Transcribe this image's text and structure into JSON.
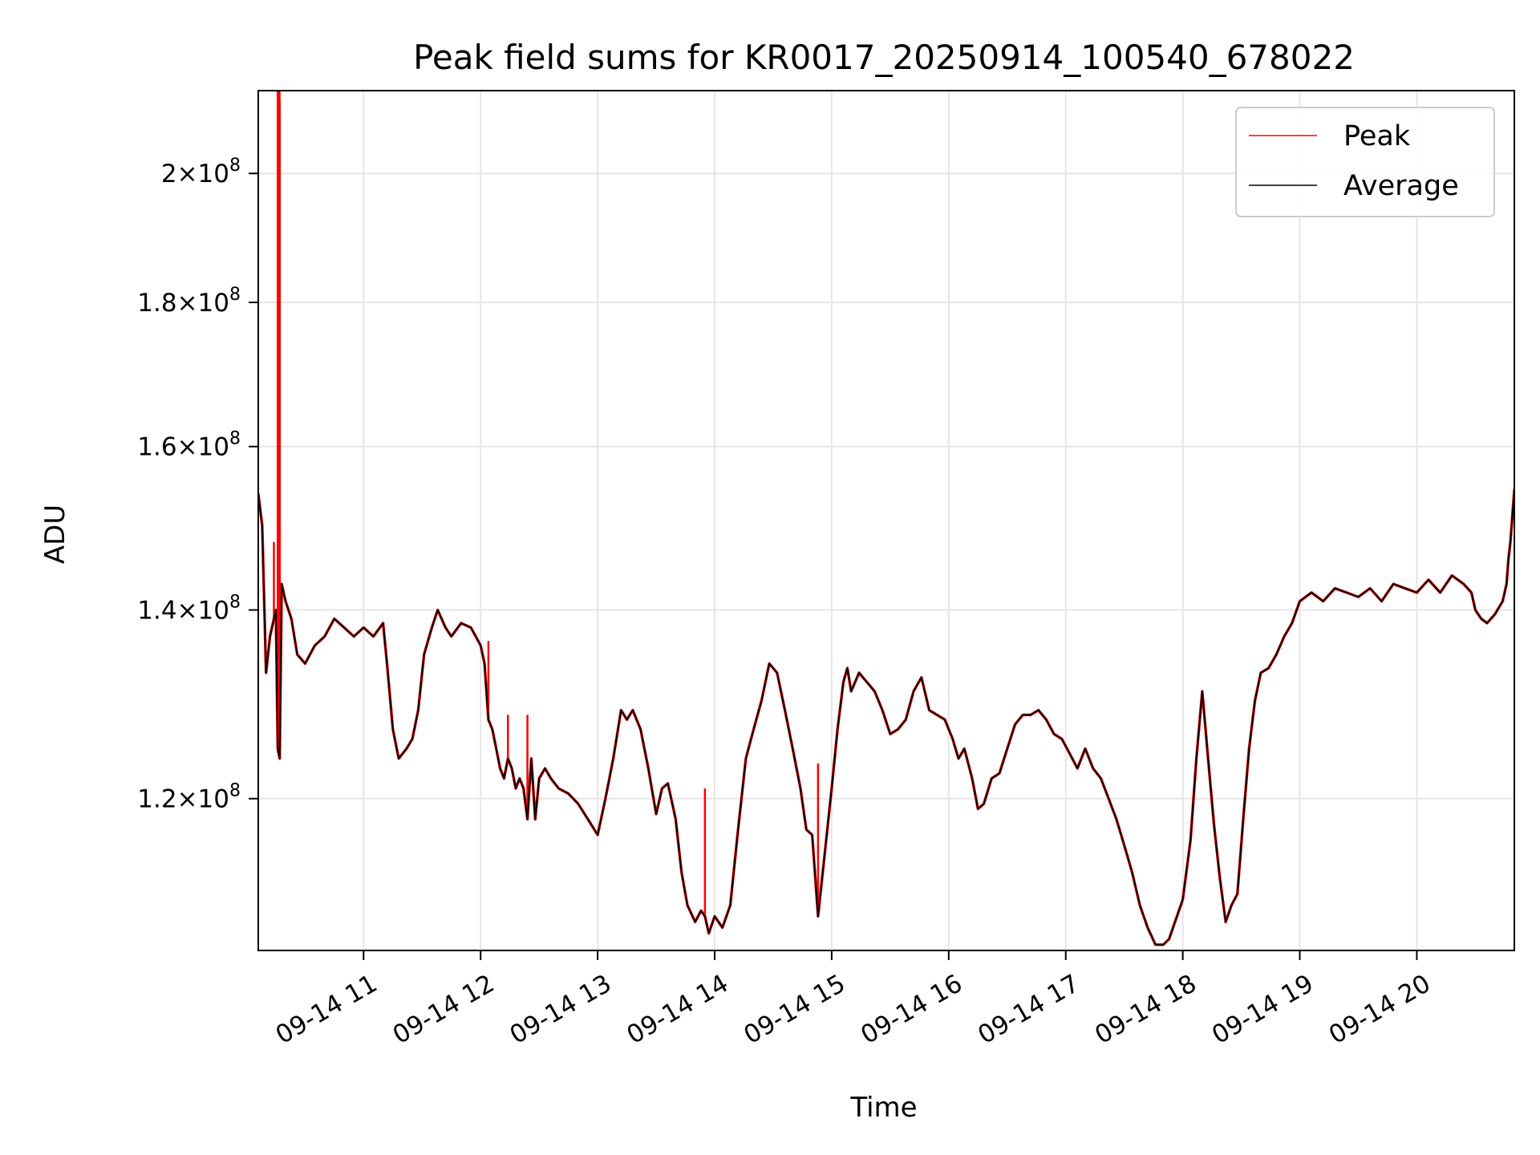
{
  "chart_data": {
    "type": "line",
    "title": "Peak field sums for KR0017_20250914_100540_678022",
    "xlabel": "Time",
    "ylabel": "ADU",
    "x_range": [
      "2025-09-14T10:06",
      "2025-09-14T20:50"
    ],
    "y_scale": "log",
    "ylim": [
      106000000,
      214000000
    ],
    "grid": true,
    "legend_position": "top-right",
    "x_ticks": [
      {
        "time": "2025-09-14T11:00",
        "label": "09-14 11"
      },
      {
        "time": "2025-09-14T12:00",
        "label": "09-14 12"
      },
      {
        "time": "2025-09-14T13:00",
        "label": "09-14 13"
      },
      {
        "time": "2025-09-14T14:00",
        "label": "09-14 14"
      },
      {
        "time": "2025-09-14T15:00",
        "label": "09-14 15"
      },
      {
        "time": "2025-09-14T16:00",
        "label": "09-14 16"
      },
      {
        "time": "2025-09-14T17:00",
        "label": "09-14 17"
      },
      {
        "time": "2025-09-14T18:00",
        "label": "09-14 18"
      },
      {
        "time": "2025-09-14T19:00",
        "label": "09-14 19"
      },
      {
        "time": "2025-09-14T20:00",
        "label": "09-14 20"
      }
    ],
    "y_ticks": [
      {
        "value": 120000000,
        "mantissa": "1.2",
        "base": "×10",
        "exp": "8"
      },
      {
        "value": 140000000,
        "mantissa": "1.4",
        "base": "×10",
        "exp": "8"
      },
      {
        "value": 160000000,
        "mantissa": "1.6",
        "base": "×10",
        "exp": "8"
      },
      {
        "value": 180000000,
        "mantissa": "1.8",
        "base": "×10",
        "exp": "8"
      },
      {
        "value": 200000000,
        "mantissa": "2",
        "base": "×10",
        "exp": "8"
      }
    ],
    "series": [
      {
        "name": "Average",
        "color": "#000000",
        "points": [
          [
            "2025-09-14T10:06",
            154000000
          ],
          [
            "2025-09-14T10:08",
            150000000
          ],
          [
            "2025-09-14T10:10",
            133000000
          ],
          [
            "2025-09-14T10:12",
            137000000
          ],
          [
            "2025-09-14T10:14",
            139000000
          ],
          [
            "2025-09-14T10:15",
            140000000
          ],
          [
            "2025-09-14T10:16",
            125000000
          ],
          [
            "2025-09-14T10:17",
            124000000
          ],
          [
            "2025-09-14T10:18",
            143000000
          ],
          [
            "2025-09-14T10:20",
            141000000
          ],
          [
            "2025-09-14T10:23",
            139000000
          ],
          [
            "2025-09-14T10:26",
            135000000
          ],
          [
            "2025-09-14T10:30",
            134000000
          ],
          [
            "2025-09-14T10:35",
            136000000
          ],
          [
            "2025-09-14T10:40",
            137000000
          ],
          [
            "2025-09-14T10:45",
            139000000
          ],
          [
            "2025-09-14T10:50",
            138000000
          ],
          [
            "2025-09-14T10:55",
            137000000
          ],
          [
            "2025-09-14T11:00",
            138000000
          ],
          [
            "2025-09-14T11:05",
            137000000
          ],
          [
            "2025-09-14T11:10",
            138500000
          ],
          [
            "2025-09-14T11:12",
            134000000
          ],
          [
            "2025-09-14T11:15",
            127000000
          ],
          [
            "2025-09-14T11:18",
            124000000
          ],
          [
            "2025-09-14T11:22",
            125000000
          ],
          [
            "2025-09-14T11:25",
            126000000
          ],
          [
            "2025-09-14T11:28",
            129000000
          ],
          [
            "2025-09-14T11:31",
            135000000
          ],
          [
            "2025-09-14T11:35",
            138000000
          ],
          [
            "2025-09-14T11:38",
            140000000
          ],
          [
            "2025-09-14T11:42",
            138000000
          ],
          [
            "2025-09-14T11:45",
            137000000
          ],
          [
            "2025-09-14T11:50",
            138500000
          ],
          [
            "2025-09-14T11:55",
            138000000
          ],
          [
            "2025-09-14T12:00",
            136000000
          ],
          [
            "2025-09-14T12:02",
            134000000
          ],
          [
            "2025-09-14T12:04",
            128000000
          ],
          [
            "2025-09-14T12:06",
            127000000
          ],
          [
            "2025-09-14T12:08",
            125000000
          ],
          [
            "2025-09-14T12:10",
            123000000
          ],
          [
            "2025-09-14T12:12",
            122000000
          ],
          [
            "2025-09-14T12:14",
            124000000
          ],
          [
            "2025-09-14T12:16",
            123000000
          ],
          [
            "2025-09-14T12:18",
            121000000
          ],
          [
            "2025-09-14T12:20",
            122000000
          ],
          [
            "2025-09-14T12:22",
            121000000
          ],
          [
            "2025-09-14T12:24",
            118000000
          ],
          [
            "2025-09-14T12:26",
            124000000
          ],
          [
            "2025-09-14T12:28",
            118000000
          ],
          [
            "2025-09-14T12:30",
            122000000
          ],
          [
            "2025-09-14T12:33",
            123000000
          ],
          [
            "2025-09-14T12:36",
            122000000
          ],
          [
            "2025-09-14T12:40",
            121000000
          ],
          [
            "2025-09-14T12:45",
            120500000
          ],
          [
            "2025-09-14T12:50",
            119500000
          ],
          [
            "2025-09-14T12:55",
            118000000
          ],
          [
            "2025-09-14T13:00",
            116500000
          ],
          [
            "2025-09-14T13:04",
            120000000
          ],
          [
            "2025-09-14T13:08",
            124000000
          ],
          [
            "2025-09-14T13:12",
            129000000
          ],
          [
            "2025-09-14T13:15",
            128000000
          ],
          [
            "2025-09-14T13:18",
            129000000
          ],
          [
            "2025-09-14T13:22",
            127000000
          ],
          [
            "2025-09-14T13:26",
            123000000
          ],
          [
            "2025-09-14T13:30",
            118500000
          ],
          [
            "2025-09-14T13:33",
            121000000
          ],
          [
            "2025-09-14T13:36",
            121500000
          ],
          [
            "2025-09-14T13:40",
            118000000
          ],
          [
            "2025-09-14T13:43",
            113000000
          ],
          [
            "2025-09-14T13:46",
            110000000
          ],
          [
            "2025-09-14T13:50",
            108500000
          ],
          [
            "2025-09-14T13:53",
            109500000
          ],
          [
            "2025-09-14T13:55",
            109000000
          ],
          [
            "2025-09-14T13:57",
            107500000
          ],
          [
            "2025-09-14T14:00",
            109000000
          ],
          [
            "2025-09-14T14:04",
            108000000
          ],
          [
            "2025-09-14T14:08",
            110000000
          ],
          [
            "2025-09-14T14:12",
            117000000
          ],
          [
            "2025-09-14T14:16",
            124000000
          ],
          [
            "2025-09-14T14:20",
            127000000
          ],
          [
            "2025-09-14T14:24",
            130000000
          ],
          [
            "2025-09-14T14:28",
            134000000
          ],
          [
            "2025-09-14T14:32",
            133000000
          ],
          [
            "2025-09-14T14:36",
            129000000
          ],
          [
            "2025-09-14T14:40",
            125000000
          ],
          [
            "2025-09-14T14:44",
            121000000
          ],
          [
            "2025-09-14T14:47",
            117000000
          ],
          [
            "2025-09-14T14:50",
            116500000
          ],
          [
            "2025-09-14T14:53",
            109000000
          ],
          [
            "2025-09-14T14:56",
            114000000
          ],
          [
            "2025-09-14T15:00",
            121000000
          ],
          [
            "2025-09-14T15:03",
            127000000
          ],
          [
            "2025-09-14T15:06",
            132000000
          ],
          [
            "2025-09-14T15:08",
            133500000
          ],
          [
            "2025-09-14T15:10",
            131000000
          ],
          [
            "2025-09-14T15:14",
            133000000
          ],
          [
            "2025-09-14T15:18",
            132000000
          ],
          [
            "2025-09-14T15:22",
            131000000
          ],
          [
            "2025-09-14T15:26",
            129000000
          ],
          [
            "2025-09-14T15:30",
            126500000
          ],
          [
            "2025-09-14T15:34",
            127000000
          ],
          [
            "2025-09-14T15:38",
            128000000
          ],
          [
            "2025-09-14T15:42",
            131000000
          ],
          [
            "2025-09-14T15:46",
            132500000
          ],
          [
            "2025-09-14T15:50",
            129000000
          ],
          [
            "2025-09-14T15:54",
            128500000
          ],
          [
            "2025-09-14T15:58",
            128000000
          ],
          [
            "2025-09-14T16:02",
            126000000
          ],
          [
            "2025-09-14T16:05",
            124000000
          ],
          [
            "2025-09-14T16:08",
            125000000
          ],
          [
            "2025-09-14T16:12",
            122000000
          ],
          [
            "2025-09-14T16:15",
            119000000
          ],
          [
            "2025-09-14T16:18",
            119500000
          ],
          [
            "2025-09-14T16:22",
            122000000
          ],
          [
            "2025-09-14T16:26",
            122500000
          ],
          [
            "2025-09-14T16:30",
            125000000
          ],
          [
            "2025-09-14T16:34",
            127500000
          ],
          [
            "2025-09-14T16:38",
            128500000
          ],
          [
            "2025-09-14T16:42",
            128500000
          ],
          [
            "2025-09-14T16:46",
            129000000
          ],
          [
            "2025-09-14T16:50",
            128000000
          ],
          [
            "2025-09-14T16:54",
            126500000
          ],
          [
            "2025-09-14T16:58",
            126000000
          ],
          [
            "2025-09-14T17:02",
            124500000
          ],
          [
            "2025-09-14T17:06",
            123000000
          ],
          [
            "2025-09-14T17:10",
            125000000
          ],
          [
            "2025-09-14T17:14",
            123000000
          ],
          [
            "2025-09-14T17:18",
            122000000
          ],
          [
            "2025-09-14T17:22",
            120000000
          ],
          [
            "2025-09-14T17:26",
            118000000
          ],
          [
            "2025-09-14T17:30",
            115500000
          ],
          [
            "2025-09-14T17:34",
            113000000
          ],
          [
            "2025-09-14T17:38",
            110000000
          ],
          [
            "2025-09-14T17:42",
            108000000
          ],
          [
            "2025-09-14T17:46",
            106500000
          ],
          [
            "2025-09-14T17:50",
            106500000
          ],
          [
            "2025-09-14T17:53",
            107000000
          ],
          [
            "2025-09-14T17:56",
            108500000
          ],
          [
            "2025-09-14T18:00",
            110500000
          ],
          [
            "2025-09-14T18:04",
            116000000
          ],
          [
            "2025-09-14T18:07",
            124000000
          ],
          [
            "2025-09-14T18:10",
            131000000
          ],
          [
            "2025-09-14T18:13",
            124000000
          ],
          [
            "2025-09-14T18:16",
            117500000
          ],
          [
            "2025-09-14T18:19",
            112500000
          ],
          [
            "2025-09-14T18:22",
            108500000
          ],
          [
            "2025-09-14T18:25",
            110000000
          ],
          [
            "2025-09-14T18:28",
            111000000
          ],
          [
            "2025-09-14T18:31",
            118000000
          ],
          [
            "2025-09-14T18:34",
            125000000
          ],
          [
            "2025-09-14T18:37",
            130000000
          ],
          [
            "2025-09-14T18:40",
            133000000
          ],
          [
            "2025-09-14T18:44",
            133500000
          ],
          [
            "2025-09-14T18:48",
            135000000
          ],
          [
            "2025-09-14T18:52",
            137000000
          ],
          [
            "2025-09-14T18:56",
            138500000
          ],
          [
            "2025-09-14T19:00",
            141000000
          ],
          [
            "2025-09-14T19:06",
            142000000
          ],
          [
            "2025-09-14T19:12",
            141000000
          ],
          [
            "2025-09-14T19:18",
            142500000
          ],
          [
            "2025-09-14T19:24",
            142000000
          ],
          [
            "2025-09-14T19:30",
            141500000
          ],
          [
            "2025-09-14T19:36",
            142500000
          ],
          [
            "2025-09-14T19:42",
            141000000
          ],
          [
            "2025-09-14T19:48",
            143000000
          ],
          [
            "2025-09-14T19:54",
            142500000
          ],
          [
            "2025-09-14T20:00",
            142000000
          ],
          [
            "2025-09-14T20:06",
            143500000
          ],
          [
            "2025-09-14T20:12",
            142000000
          ],
          [
            "2025-09-14T20:18",
            144000000
          ],
          [
            "2025-09-14T20:24",
            143000000
          ],
          [
            "2025-09-14T20:28",
            142000000
          ],
          [
            "2025-09-14T20:30",
            140000000
          ],
          [
            "2025-09-14T20:33",
            139000000
          ],
          [
            "2025-09-14T20:36",
            138500000
          ],
          [
            "2025-09-14T20:40",
            139500000
          ],
          [
            "2025-09-14T20:44",
            141000000
          ],
          [
            "2025-09-14T20:46",
            143000000
          ],
          [
            "2025-09-14T20:47",
            146000000
          ],
          [
            "2025-09-14T20:48",
            148000000
          ],
          [
            "2025-09-14T20:50",
            154500000
          ]
        ]
      },
      {
        "name": "Peak",
        "color": "#ff0000",
        "spikes": [
          [
            "2025-09-14T10:14",
            148000000
          ],
          [
            "2025-09-14T10:16",
            214000000
          ],
          [
            "2025-09-14T10:17",
            212000000
          ],
          [
            "2025-09-14T12:04",
            136500000
          ],
          [
            "2025-09-14T12:14",
            128500000
          ],
          [
            "2025-09-14T12:24",
            128500000
          ],
          [
            "2025-09-14T13:55",
            121000000
          ],
          [
            "2025-09-14T14:53",
            123500000
          ]
        ]
      }
    ]
  }
}
